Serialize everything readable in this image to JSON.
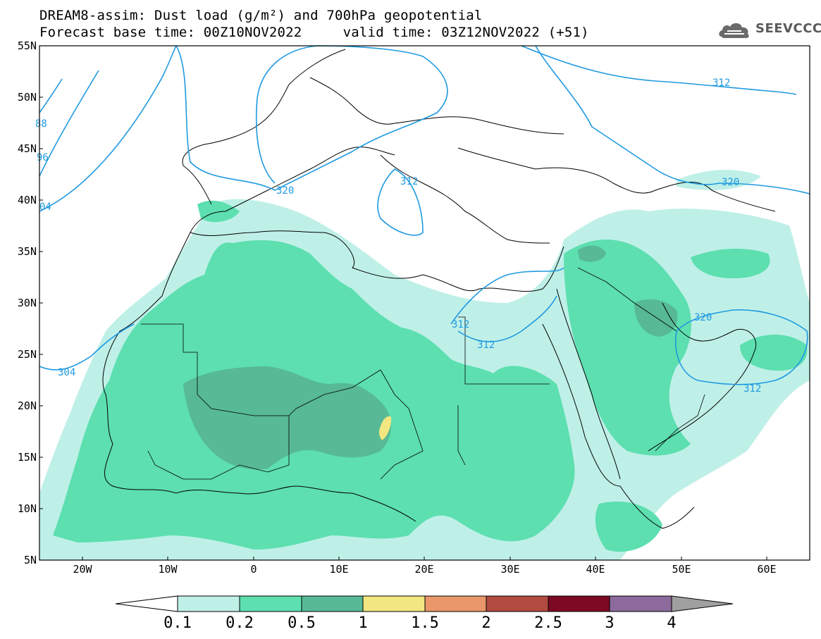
{
  "title": {
    "line1": "DREAM8-assim: Dust load (g/m²) and 700hPa geopotential",
    "line2": "Forecast base time: 00Z10NOV2022     valid time: 03Z12NOV2022 (+51)"
  },
  "logo": {
    "text": "SEEVCCC",
    "icon": "cloud-logo-icon"
  },
  "map": {
    "lon_range": [
      -25,
      65
    ],
    "lat_range": [
      5,
      55
    ],
    "lat_labels": [
      "55N",
      "50N",
      "45N",
      "40N",
      "35N",
      "30N",
      "25N",
      "20N",
      "15N",
      "10N",
      "5N"
    ],
    "lon_labels": [
      "20W",
      "10W",
      "0",
      "10E",
      "20E",
      "30E",
      "40E",
      "50E",
      "60E"
    ],
    "contour_color": "#1f9ae0",
    "contour_labels": [
      "88",
      "96",
      "04",
      "320",
      "312",
      "312",
      "312",
      "304",
      "312",
      "320",
      "320",
      "312"
    ]
  },
  "legend": {
    "labels": [
      "0.1",
      "0.2",
      "0.5",
      "1",
      "1.5",
      "2",
      "2.5",
      "3",
      "4"
    ],
    "colors": [
      "#ffffff",
      "#bff0e8",
      "#5ddfb0",
      "#57b995",
      "#f2e680",
      "#e9966a",
      "#b14b40",
      "#7c0a24",
      "#8c6a9c",
      "#a0a0a0"
    ]
  }
}
